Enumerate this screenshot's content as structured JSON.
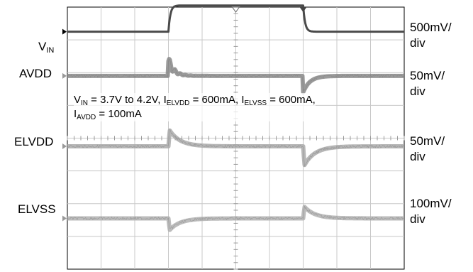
{
  "chart_data": {
    "type": "line",
    "grid": true,
    "divisions": {
      "x": 10,
      "y": 8
    },
    "annotation": {
      "line1": [
        {
          "t": "V",
          "sub": "IN"
        },
        {
          "t": " = 3.7V to 4.2V, I"
        },
        {
          "t": "",
          "sub": "ELVDD"
        },
        {
          "t": " = 600mA, I"
        },
        {
          "t": "",
          "sub": "ELVSS"
        },
        {
          "t": " = 600mA,"
        }
      ],
      "line2": [
        {
          "t": "I",
          "sub": "AVDD"
        },
        {
          "t": " = 100mA"
        }
      ]
    },
    "time_markers": {
      "step_up_div": 3.0,
      "step_down_div": 7.0
    },
    "series": [
      {
        "name": "VIN",
        "label": "V",
        "label_sub": "IN",
        "scale": "500mV/div",
        "color": "#4a4a4a",
        "baseline_div": 0.75,
        "step_div": -0.8,
        "type": "step"
      },
      {
        "name": "AVDD",
        "label": "AVDD",
        "label_sub": "",
        "scale": "50mV/div",
        "color": "#888888",
        "baseline_div": 2.1,
        "spike_up_div": -0.45,
        "spike_down_div": 0.5,
        "type": "spike"
      },
      {
        "name": "ELVDD",
        "label": "ELVDD",
        "label_sub": "",
        "scale": "50mV/div",
        "color": "#aaaaaa",
        "baseline_div": 4.25,
        "spike_up_div": -0.55,
        "spike_down_div": 0.65,
        "type": "decay"
      },
      {
        "name": "ELVSS",
        "label": "ELVSS",
        "label_sub": "",
        "scale": "100mV/div",
        "color": "#b0b0b0",
        "baseline_div": 6.45,
        "spike_up_div": 0.4,
        "spike_down_div": -0.4,
        "type": "decay"
      }
    ]
  }
}
